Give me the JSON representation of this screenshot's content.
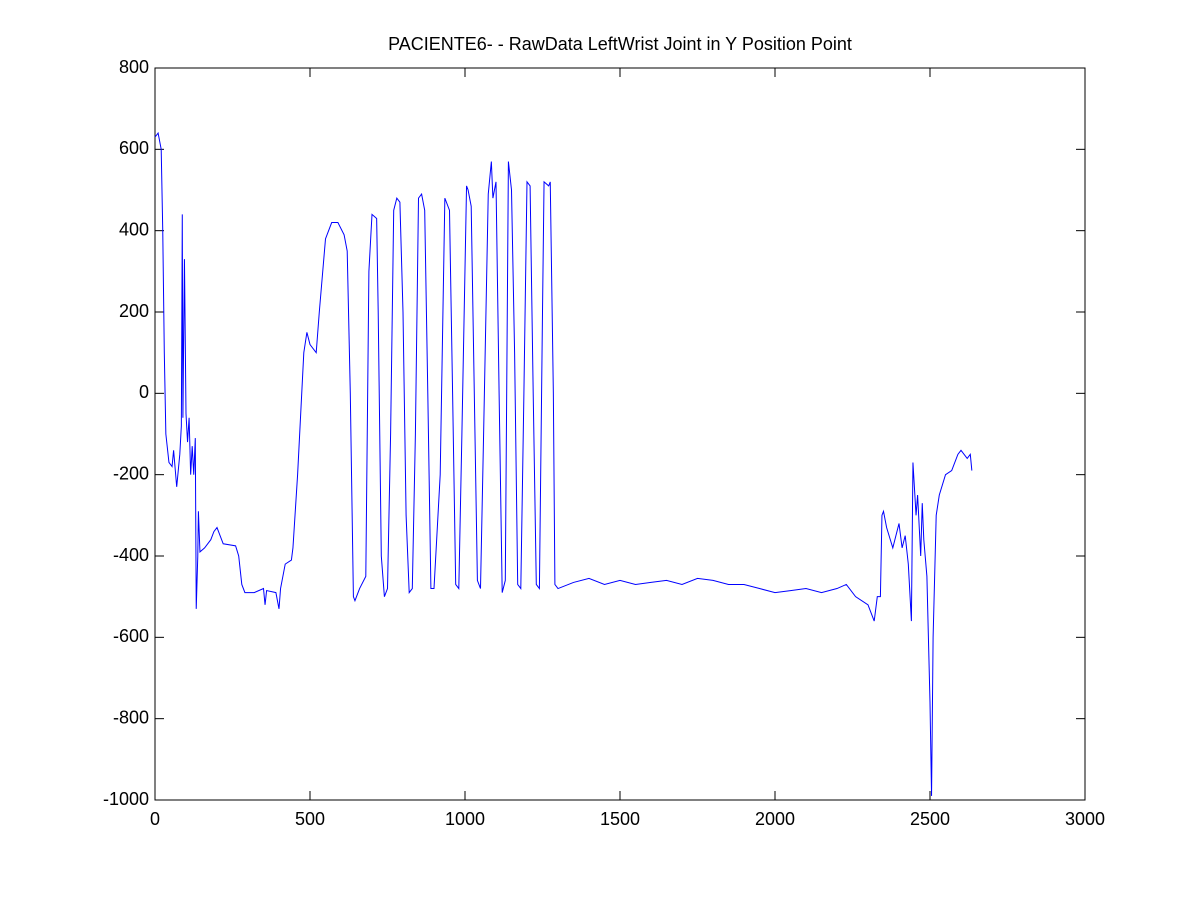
{
  "chart_data": {
    "type": "line",
    "title": "PACIENTE6- - RawData LeftWrist Joint in Y Position Point",
    "x": [
      0,
      10,
      20,
      25,
      30,
      35,
      45,
      55,
      60,
      70,
      80,
      85,
      88,
      90,
      95,
      100,
      105,
      110,
      115,
      120,
      125,
      130,
      133,
      138,
      140,
      145,
      160,
      180,
      190,
      200,
      210,
      220,
      260,
      270,
      280,
      290,
      320,
      350,
      355,
      360,
      390,
      400,
      405,
      420,
      440,
      445,
      460,
      470,
      480,
      490,
      500,
      520,
      530,
      550,
      570,
      590,
      610,
      620,
      630,
      640,
      645,
      660,
      680,
      690,
      700,
      715,
      720,
      730,
      740,
      750,
      760,
      770,
      780,
      790,
      800,
      810,
      820,
      830,
      840,
      850,
      860,
      870,
      880,
      890,
      900,
      920,
      935,
      950,
      960,
      970,
      980,
      990,
      1005,
      1010,
      1020,
      1030,
      1040,
      1050,
      1060,
      1075,
      1085,
      1090,
      1100,
      1110,
      1120,
      1130,
      1140,
      1150,
      1160,
      1170,
      1180,
      1190,
      1200,
      1210,
      1220,
      1230,
      1240,
      1250,
      1255,
      1270,
      1275,
      1285,
      1290,
      1300,
      1350,
      1400,
      1450,
      1500,
      1550,
      1600,
      1650,
      1700,
      1750,
      1800,
      1850,
      1900,
      1950,
      2000,
      2050,
      2100,
      2150,
      2200,
      2230,
      2260,
      2300,
      2320,
      2330,
      2340,
      2345,
      2350,
      2360,
      2380,
      2400,
      2410,
      2420,
      2430,
      2440,
      2445,
      2455,
      2460,
      2470,
      2475,
      2480,
      2490,
      2500,
      2505,
      2510,
      2520,
      2530,
      2550,
      2570,
      2590,
      2600,
      2620,
      2630,
      2635
    ],
    "series": [
      {
        "color": "#0000ff",
        "values": [
          630,
          640,
          600,
          400,
          100,
          -100,
          -170,
          -180,
          -140,
          -230,
          -150,
          -80,
          440,
          -60,
          330,
          -50,
          -120,
          -60,
          -200,
          -130,
          -200,
          -110,
          -530,
          -400,
          -290,
          -390,
          -380,
          -360,
          -340,
          -330,
          -350,
          -370,
          -375,
          -400,
          -470,
          -490,
          -490,
          -480,
          -520,
          -485,
          -490,
          -530,
          -480,
          -420,
          -410,
          -380,
          -200,
          -50,
          100,
          150,
          120,
          100,
          200,
          380,
          420,
          420,
          390,
          350,
          0,
          -500,
          -510,
          -480,
          -450,
          300,
          440,
          430,
          200,
          -400,
          -500,
          -480,
          -100,
          450,
          480,
          470,
          200,
          -300,
          -490,
          -480,
          -100,
          480,
          490,
          450,
          0,
          -480,
          -480,
          -200,
          480,
          450,
          0,
          -470,
          -480,
          -100,
          510,
          500,
          460,
          0,
          -460,
          -480,
          -100,
          490,
          570,
          480,
          520,
          0,
          -490,
          -460,
          570,
          500,
          100,
          -470,
          -480,
          0,
          520,
          510,
          0,
          -470,
          -480,
          200,
          520,
          510,
          520,
          0,
          -470,
          -480,
          -465,
          -455,
          -470,
          -460,
          -470,
          -465,
          -460,
          -470,
          -455,
          -460,
          -470,
          -470,
          -480,
          -490,
          -485,
          -480,
          -490,
          -480,
          -470,
          -500,
          -520,
          -560,
          -500,
          -500,
          -300,
          -290,
          -330,
          -380,
          -320,
          -380,
          -350,
          -420,
          -560,
          -170,
          -300,
          -250,
          -400,
          -270,
          -360,
          -450,
          -760,
          -990,
          -600,
          -300,
          -250,
          -200,
          -190,
          -150,
          -140,
          -160,
          -150,
          -190
        ]
      }
    ],
    "xlim": [
      0,
      3000
    ],
    "xticks": [
      0,
      500,
      1000,
      1500,
      2000,
      2500,
      3000
    ],
    "ylim": [
      -1000,
      800
    ],
    "yticks": [
      -1000,
      -800,
      -600,
      -400,
      -200,
      0,
      200,
      400,
      600,
      800
    ],
    "grid": false
  }
}
